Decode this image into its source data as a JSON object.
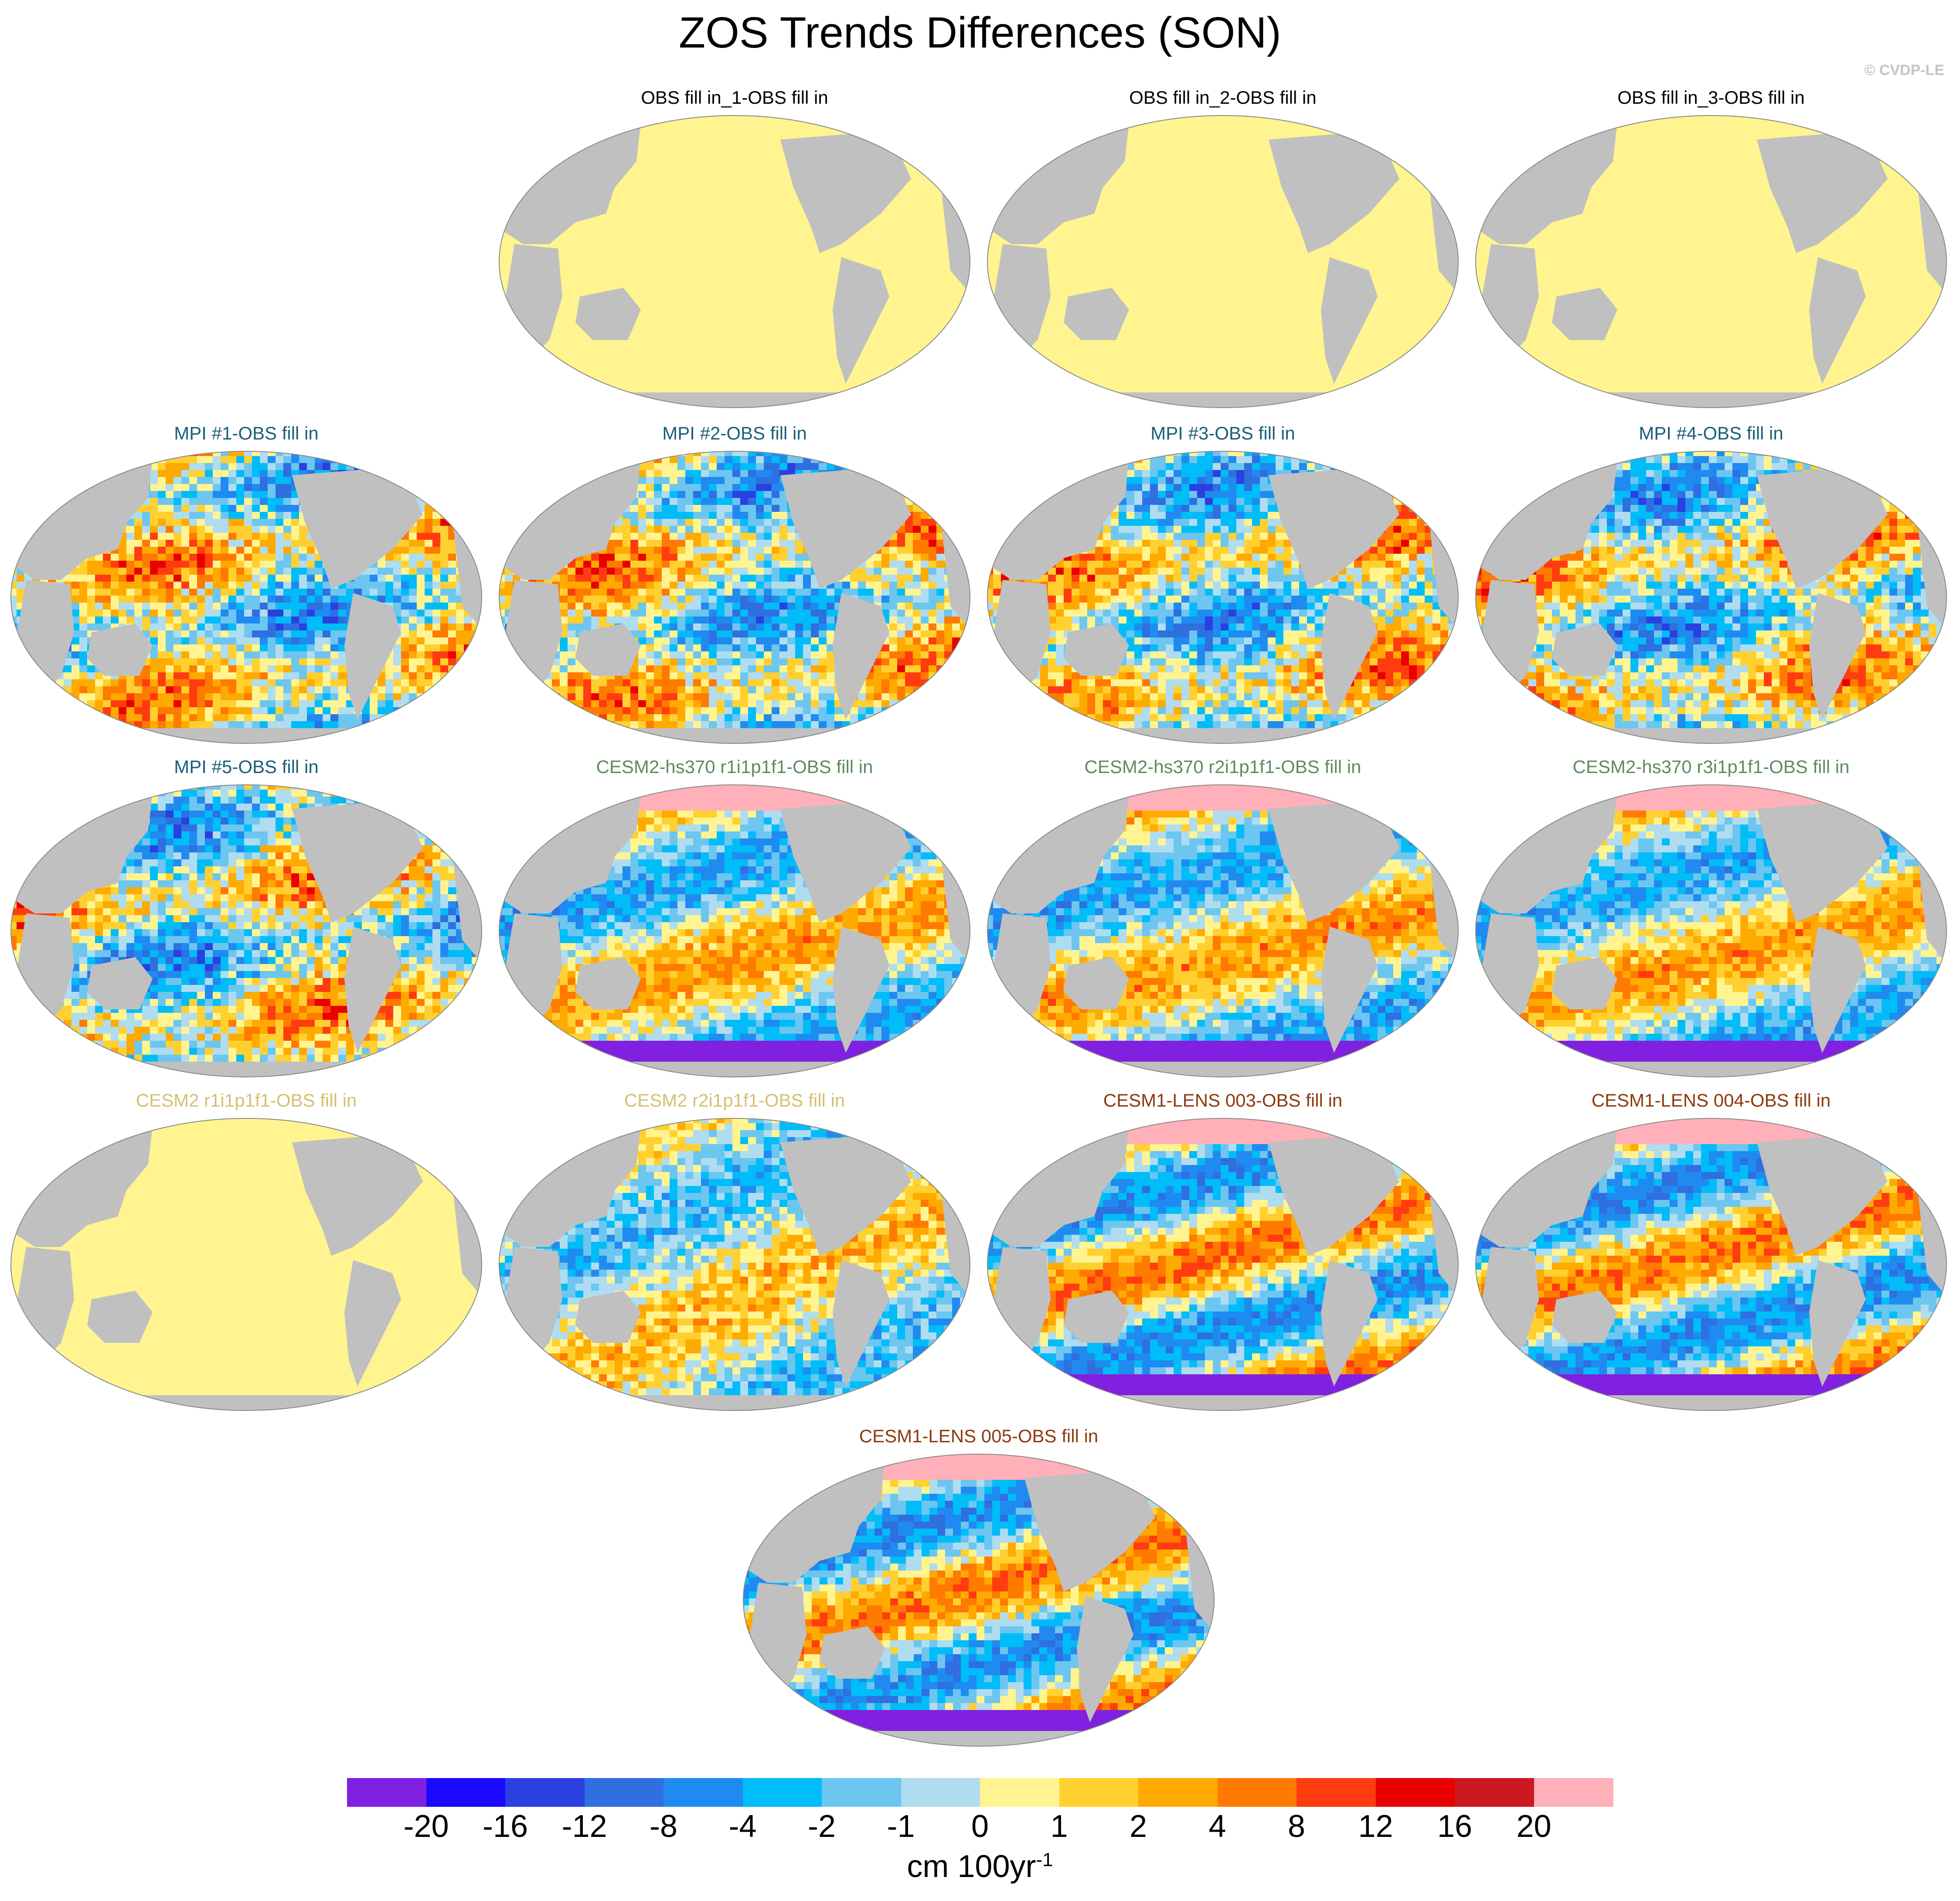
{
  "figure": {
    "title": "ZOS Trends Differences (SON)",
    "credit": "© CVDP-LE"
  },
  "panels": [
    {
      "title": "OBS fill in_1-OBS fill in",
      "title_color": "#000000",
      "pattern": "uniform"
    },
    {
      "title": "OBS fill in_2-OBS fill in",
      "title_color": "#000000",
      "pattern": "uniform"
    },
    {
      "title": "OBS fill in_3-OBS fill in",
      "title_color": "#000000",
      "pattern": "uniform"
    },
    {
      "title": "MPI #1-OBS fill in",
      "title_color": "#1a5d7a",
      "pattern": "mpi"
    },
    {
      "title": "MPI #2-OBS fill in",
      "title_color": "#1a5d7a",
      "pattern": "mpi"
    },
    {
      "title": "MPI #3-OBS fill in",
      "title_color": "#1a5d7a",
      "pattern": "mpi"
    },
    {
      "title": "MPI #4-OBS fill in",
      "title_color": "#1a5d7a",
      "pattern": "mpi"
    },
    {
      "title": "MPI #5-OBS fill in",
      "title_color": "#1a5d7a",
      "pattern": "mpi"
    },
    {
      "title": "CESM2-hs370 r1i1p1f1-OBS fill in",
      "title_color": "#5f8a5f",
      "pattern": "cesm"
    },
    {
      "title": "CESM2-hs370 r2i1p1f1-OBS fill in",
      "title_color": "#5f8a5f",
      "pattern": "cesm"
    },
    {
      "title": "CESM2-hs370 r3i1p1f1-OBS fill in",
      "title_color": "#5f8a5f",
      "pattern": "cesm"
    },
    {
      "title": "CESM2 r1i1p1f1-OBS fill in",
      "title_color": "#d4c070",
      "pattern": "uniform"
    },
    {
      "title": "CESM2 r2i1p1f1-OBS fill in",
      "title_color": "#d4c070",
      "pattern": "mixed"
    },
    {
      "title": "CESM1-LENS 003-OBS fill in",
      "title_color": "#8a3a10",
      "pattern": "lens"
    },
    {
      "title": "CESM1-LENS 004-OBS fill in",
      "title_color": "#8a3a10",
      "pattern": "lens"
    },
    {
      "title": "CESM1-LENS 005-OBS fill in",
      "title_color": "#8a3a10",
      "pattern": "lens"
    }
  ],
  "colorbar": {
    "units_main": "cm 100yr",
    "units_exp": "-1",
    "ticks": [
      "-20",
      "-16",
      "-12",
      "-8",
      "-4",
      "-2",
      "-1",
      "0",
      "1",
      "2",
      "4",
      "8",
      "12",
      "16",
      "20"
    ],
    "colors": [
      "#8020e0",
      "#1a0aff",
      "#2a40e0",
      "#2f6fe0",
      "#1f8bf0",
      "#00bcf8",
      "#6cc6f0",
      "#b0dcf0",
      "#fff490",
      "#ffd030",
      "#ffaa00",
      "#ff7a00",
      "#ff3c10",
      "#e80000",
      "#cc1820",
      "#ffb0b8"
    ]
  }
}
